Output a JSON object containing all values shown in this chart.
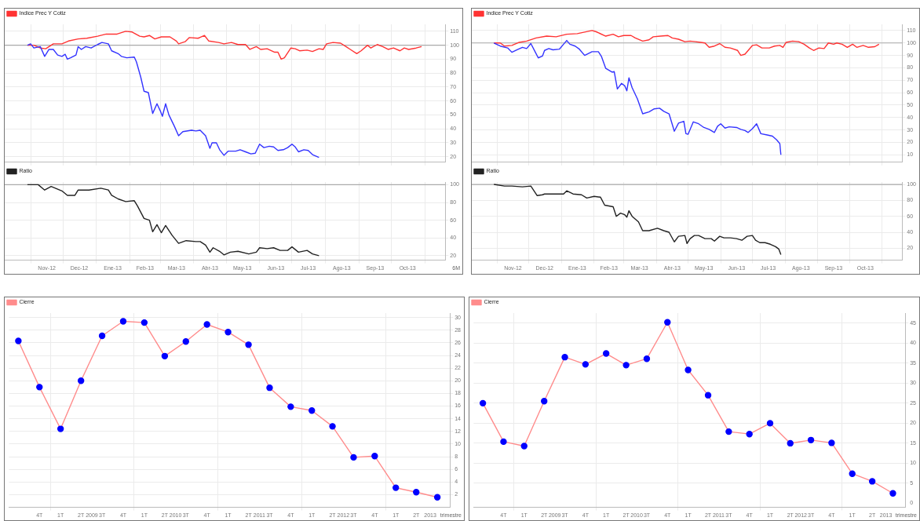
{
  "chart_data": [
    {
      "type": "line",
      "legend": "top left",
      "marker": "none",
      "grid": true,
      "tick_labels": "y",
      "xlim": [
        "2012-10-08",
        "2013-11-20"
      ],
      "ylim": [
        16,
        115
      ],
      "yticks": [
        20,
        30,
        40,
        50,
        60,
        70,
        80,
        90,
        100,
        110
      ],
      "xticks": [
        {
          "value": "2012-11-01",
          "label": null
        },
        {
          "value": "2012-12-01",
          "label": null
        },
        {
          "value": "2013-01-01",
          "label": null
        },
        {
          "value": "2013-02-01",
          "label": null
        },
        {
          "value": "2013-03-01",
          "label": null
        },
        {
          "value": "2013-04-01",
          "label": null
        },
        {
          "value": "2013-05-01",
          "label": null
        },
        {
          "value": "2013-06-01",
          "label": null
        },
        {
          "value": "2013-07-01",
          "label": null
        },
        {
          "value": "2013-08-01",
          "label": null
        },
        {
          "value": "2013-09-01",
          "label": null
        },
        {
          "value": "2013-10-01",
          "label": null
        },
        {
          "value": "2013-11-01",
          "label": null
        }
      ],
      "ref_lines": [
        {
          "axis": "y",
          "value": 100,
          "color": "#aaaaaa"
        }
      ],
      "series": [
        {
          "color": "#3333ff",
          "x": [
            "2012-10-29",
            "2012-11-01",
            "2012-11-04",
            "2012-11-10",
            "2012-11-14",
            "2012-11-18",
            "2012-11-22",
            "2012-11-26",
            "2012-11-30",
            "2012-12-03",
            "2012-12-05",
            "2012-12-08",
            "2012-12-13",
            "2012-12-15",
            "2012-12-18",
            "2012-12-22",
            "2012-12-27",
            "2013-01-02",
            "2013-01-06",
            "2013-01-12",
            "2013-01-15",
            "2013-01-21",
            "2013-01-24",
            "2013-01-29",
            "2013-02-05",
            "2013-02-07",
            "2013-02-11",
            "2013-02-14",
            "2013-02-18",
            "2013-02-22",
            "2013-02-26",
            "2013-03-01",
            "2013-03-03",
            "2013-03-06",
            "2013-03-09",
            "2013-03-14",
            "2013-03-18",
            "2013-03-22",
            "2013-03-30",
            "2013-04-03",
            "2013-04-07",
            "2013-04-12",
            "2013-04-16",
            "2013-04-18",
            "2013-04-22",
            "2013-04-25",
            "2013-04-29",
            "2013-05-03",
            "2013-05-10",
            "2013-05-14",
            "2013-05-19",
            "2013-05-24",
            "2013-05-28",
            "2013-06-01",
            "2013-06-05",
            "2013-06-10",
            "2013-06-14",
            "2013-06-18",
            "2013-06-23",
            "2013-06-27",
            "2013-07-01",
            "2013-07-04",
            "2013-07-07",
            "2013-07-12",
            "2013-07-16",
            "2013-07-20",
            "2013-07-26"
          ],
          "values": [
            100,
            101,
            98,
            99,
            92,
            97,
            97,
            93,
            92,
            93.5,
            90,
            91,
            93,
            99,
            97,
            99,
            98,
            100.5,
            102,
            101,
            96,
            94,
            92,
            91,
            91.5,
            88,
            77,
            67,
            66,
            51,
            58,
            53,
            49,
            58,
            50,
            42,
            35,
            38,
            39,
            38.5,
            39,
            35,
            26,
            30,
            30,
            25,
            21,
            24,
            24,
            25,
            23.5,
            22,
            22.5,
            29,
            26.5,
            27.5,
            27,
            24.5,
            25,
            26.5,
            29,
            27,
            23.5,
            25,
            24.5,
            21.5,
            19.5
          ]
        },
        {
          "name": "Indice Prec Y Cotiz",
          "color": "#ff3333",
          "x": [
            "2012-10-29",
            "2012-11-04",
            "2012-11-10",
            "2012-11-15",
            "2012-11-22",
            "2012-11-30",
            "2012-12-06",
            "2012-12-15",
            "2012-12-23",
            "2013-01-02",
            "2013-01-10",
            "2013-01-20",
            "2013-01-28",
            "2013-02-03",
            "2013-02-10",
            "2013-02-14",
            "2013-02-19",
            "2013-02-24",
            "2013-03-02",
            "2013-03-10",
            "2013-03-16",
            "2013-03-18",
            "2013-03-24",
            "2013-03-28",
            "2013-04-05",
            "2013-04-11",
            "2013-04-15",
            "2013-04-24",
            "2013-04-29",
            "2013-05-06",
            "2013-05-12",
            "2013-05-19",
            "2013-05-23",
            "2013-05-29",
            "2013-06-02",
            "2013-06-08",
            "2013-06-15",
            "2013-06-18",
            "2013-06-21",
            "2013-06-24",
            "2013-06-30",
            "2013-07-04",
            "2013-07-08",
            "2013-07-15",
            "2013-07-20",
            "2013-07-26",
            "2013-07-30",
            "2013-08-02",
            "2013-08-08",
            "2013-08-15",
            "2013-08-20",
            "2013-08-24",
            "2013-08-30",
            "2013-09-03",
            "2013-09-09",
            "2013-09-12",
            "2013-09-18",
            "2013-09-23",
            "2013-09-28",
            "2013-10-03",
            "2013-10-09",
            "2013-10-13",
            "2013-10-17",
            "2013-10-24",
            "2013-10-29"
          ],
          "values": [
            100,
            100,
            98,
            97.5,
            101,
            101,
            103,
            104.5,
            105,
            106.5,
            108,
            108,
            110,
            109.5,
            106.5,
            106,
            107,
            104.5,
            106,
            106,
            103,
            101,
            102.5,
            105.5,
            105,
            107,
            103,
            102,
            101,
            102,
            100.5,
            100.5,
            97,
            99,
            97,
            97.5,
            95,
            95,
            90,
            91,
            98,
            97.5,
            96,
            96.5,
            95.5,
            97.5,
            97,
            101,
            102,
            101.5,
            99,
            97,
            94,
            96,
            100,
            98,
            100.5,
            99,
            97,
            98,
            96,
            98,
            97,
            98,
            99
          ]
        }
      ]
    },
    {
      "type": "line",
      "legend": "top left",
      "marker": "none",
      "grid": true,
      "xlim": [
        "2012-10-08",
        "2013-11-20"
      ],
      "ylim": [
        15,
        103
      ],
      "yticks": [
        20,
        40,
        60,
        80,
        100
      ],
      "xticks": [
        {
          "value": "2012-11-01",
          "label": null
        },
        {
          "value": "2012-11-16",
          "label": "Nov-12"
        },
        {
          "value": "2012-12-01",
          "label": null
        },
        {
          "value": "2012-12-16",
          "label": "Dec-12"
        },
        {
          "value": "2013-01-01",
          "label": null
        },
        {
          "value": "2013-01-16",
          "label": "Ene-13"
        },
        {
          "value": "2013-02-01",
          "label": null
        },
        {
          "value": "2013-02-15",
          "label": "Feb-13"
        },
        {
          "value": "2013-03-01",
          "label": null
        },
        {
          "value": "2013-03-16",
          "label": "Mar-13"
        },
        {
          "value": "2013-04-01",
          "label": null
        },
        {
          "value": "2013-04-16",
          "label": "Abr-13"
        },
        {
          "value": "2013-05-01",
          "label": null
        },
        {
          "value": "2013-05-16",
          "label": "May-13"
        },
        {
          "value": "2013-06-01",
          "label": null
        },
        {
          "value": "2013-06-16",
          "label": "Jun-13"
        },
        {
          "value": "2013-07-01",
          "label": null
        },
        {
          "value": "2013-07-16",
          "label": "Jul-13"
        },
        {
          "value": "2013-08-01",
          "label": null
        },
        {
          "value": "2013-08-16",
          "label": "Ago-13"
        },
        {
          "value": "2013-09-01",
          "label": null
        },
        {
          "value": "2013-09-16",
          "label": "Sep-13"
        },
        {
          "value": "2013-10-01",
          "label": null
        },
        {
          "value": "2013-10-16",
          "label": "Oct-13"
        },
        {
          "value": "2013-11-01",
          "label": null
        }
      ],
      "ref_lines": [
        {
          "axis": "y",
          "value": 100,
          "color": "#aaaaaa"
        }
      ],
      "annotations": [
        "6M"
      ],
      "series": [
        {
          "name": "Ratio",
          "color": "#222222",
          "x": [
            "2012-10-29",
            "2012-11-08",
            "2012-11-14",
            "2012-11-20",
            "2012-11-30",
            "2012-12-05",
            "2012-12-12",
            "2012-12-15",
            "2012-12-25",
            "2013-01-05",
            "2013-01-12",
            "2013-01-15",
            "2013-01-21",
            "2013-01-28",
            "2013-02-05",
            "2013-02-08",
            "2013-02-14",
            "2013-02-19",
            "2013-02-22",
            "2013-02-26",
            "2013-03-02",
            "2013-03-06",
            "2013-03-12",
            "2013-03-18",
            "2013-03-25",
            "2013-04-03",
            "2013-04-07",
            "2013-04-12",
            "2013-04-16",
            "2013-04-19",
            "2013-04-25",
            "2013-04-29",
            "2013-05-05",
            "2013-05-12",
            "2013-05-22",
            "2013-05-29",
            "2013-06-01",
            "2013-06-08",
            "2013-06-14",
            "2013-06-20",
            "2013-06-27",
            "2013-07-01",
            "2013-07-07",
            "2013-07-15",
            "2013-07-20",
            "2013-07-26"
          ],
          "values": [
            100,
            100,
            94,
            98,
            93,
            88,
            88,
            94,
            94,
            96,
            94,
            88,
            84,
            81,
            82,
            76,
            62,
            60,
            47,
            55,
            46,
            54,
            43,
            34,
            37,
            36,
            36,
            32,
            24,
            29,
            25,
            21,
            24,
            25,
            22,
            24,
            29,
            28,
            29,
            26,
            26,
            30,
            24,
            26,
            22,
            20
          ]
        }
      ]
    },
    {
      "type": "line",
      "legend": "top left",
      "marker": "none",
      "grid": true,
      "tick_labels": "y",
      "xlim": [
        "2012-10-08",
        "2013-11-20"
      ],
      "ylim": [
        4,
        115
      ],
      "yticks": [
        10,
        20,
        30,
        40,
        50,
        60,
        70,
        80,
        90,
        100,
        110
      ],
      "xticks": [
        {
          "value": "2012-11-01",
          "label": null
        },
        {
          "value": "2012-12-01",
          "label": null
        },
        {
          "value": "2013-01-01",
          "label": null
        },
        {
          "value": "2013-02-01",
          "label": null
        },
        {
          "value": "2013-03-01",
          "label": null
        },
        {
          "value": "2013-04-01",
          "label": null
        },
        {
          "value": "2013-05-01",
          "label": null
        },
        {
          "value": "2013-06-01",
          "label": null
        },
        {
          "value": "2013-07-01",
          "label": null
        },
        {
          "value": "2013-08-01",
          "label": null
        },
        {
          "value": "2013-09-01",
          "label": null
        },
        {
          "value": "2013-10-01",
          "label": null
        },
        {
          "value": "2013-11-01",
          "label": null
        }
      ],
      "ref_lines": [
        {
          "axis": "y",
          "value": 100,
          "color": "#aaaaaa"
        }
      ],
      "series": [
        {
          "color": "#3333ff",
          "x": [
            "2012-10-29",
            "2012-11-04",
            "2012-11-11",
            "2012-11-15",
            "2012-11-20",
            "2012-11-25",
            "2012-11-29",
            "2012-12-03",
            "2012-12-07",
            "2012-12-10",
            "2012-12-14",
            "2012-12-16",
            "2012-12-20",
            "2012-12-24",
            "2012-12-30",
            "2013-01-03",
            "2013-01-06",
            "2013-01-09",
            "2013-01-14",
            "2013-01-18",
            "2013-01-23",
            "2013-01-30",
            "2013-02-05",
            "2013-02-08",
            "2013-02-12",
            "2013-02-18",
            "2013-02-20",
            "2013-02-23",
            "2013-02-27",
            "2013-03-02",
            "2013-03-04",
            "2013-03-06",
            "2013-03-09",
            "2013-03-14",
            "2013-03-19",
            "2013-03-25",
            "2013-03-30",
            "2013-04-04",
            "2013-04-08",
            "2013-04-13",
            "2013-04-18",
            "2013-04-22",
            "2013-04-27",
            "2013-04-29",
            "2013-05-01",
            "2013-05-06",
            "2013-05-11",
            "2013-05-16",
            "2013-05-21",
            "2013-05-26",
            "2013-05-29",
            "2013-06-01",
            "2013-06-05",
            "2013-06-09",
            "2013-06-16",
            "2013-06-20",
            "2013-06-24",
            "2013-06-27",
            "2013-07-01",
            "2013-07-05",
            "2013-07-09",
            "2013-07-15",
            "2013-07-20",
            "2013-07-24",
            "2013-07-27",
            "2013-07-28"
          ],
          "values": [
            100,
            97.5,
            96,
            92.5,
            94.5,
            96.5,
            95.5,
            99.5,
            93,
            88,
            89.5,
            94,
            95.5,
            94.5,
            95,
            99,
            102,
            99,
            97.5,
            95,
            90,
            93,
            93,
            89,
            79.5,
            76.5,
            77,
            63,
            67.5,
            65.5,
            61.5,
            72,
            64,
            55,
            43,
            44.5,
            47,
            47.5,
            45,
            43,
            29,
            35.5,
            37,
            27,
            26.5,
            36.5,
            35,
            32,
            30.5,
            28,
            33,
            35,
            31.5,
            32.5,
            32,
            30.5,
            29.5,
            28,
            31,
            35,
            27,
            26,
            25,
            22,
            19,
            10
          ]
        },
        {
          "name": "Indice Prec Y Cotiz",
          "color": "#ff3333",
          "x": [
            "2012-10-29",
            "2012-11-04",
            "2012-11-08",
            "2012-11-15",
            "2012-11-22",
            "2012-11-29",
            "2012-12-08",
            "2012-12-18",
            "2012-12-27",
            "2013-01-06",
            "2013-01-16",
            "2013-01-30",
            "2013-02-03",
            "2013-02-12",
            "2013-02-19",
            "2013-02-24",
            "2013-03-01",
            "2013-03-08",
            "2013-03-12",
            "2013-03-19",
            "2013-03-25",
            "2013-03-29",
            "2013-04-05",
            "2013-04-12",
            "2013-04-16",
            "2013-04-22",
            "2013-04-28",
            "2013-05-03",
            "2013-05-08",
            "2013-05-13",
            "2013-05-17",
            "2013-05-21",
            "2013-05-26",
            "2013-05-31",
            "2013-06-05",
            "2013-06-10",
            "2013-06-17",
            "2013-06-20",
            "2013-06-24",
            "2013-07-01",
            "2013-07-05",
            "2013-07-10",
            "2013-07-17",
            "2013-07-22",
            "2013-07-27",
            "2013-07-30",
            "2013-08-02",
            "2013-08-08",
            "2013-08-14",
            "2013-08-19",
            "2013-08-24",
            "2013-08-28",
            "2013-09-02",
            "2013-09-07",
            "2013-09-11",
            "2013-09-16",
            "2013-09-19",
            "2013-09-24",
            "2013-09-29",
            "2013-10-04",
            "2013-10-08",
            "2013-10-14",
            "2013-10-19",
            "2013-10-25",
            "2013-10-29"
          ],
          "values": [
            100,
            100,
            97.5,
            98,
            100.5,
            101.5,
            104,
            105.5,
            105,
            107,
            107.5,
            110,
            109,
            105.5,
            107,
            105,
            106,
            106,
            104,
            101.5,
            102.5,
            105,
            105.5,
            106,
            104,
            103,
            101,
            101.5,
            101,
            100.5,
            100,
            96.5,
            97.5,
            99.5,
            96.5,
            96,
            94,
            90,
            91,
            98,
            98.5,
            96,
            96,
            97.5,
            98,
            96.5,
            100.5,
            101.5,
            101,
            99,
            96,
            94,
            96,
            95.5,
            100,
            99,
            100,
            99,
            96.5,
            99,
            96.5,
            98,
            96.5,
            97,
            99
          ]
        }
      ]
    },
    {
      "type": "line",
      "legend": "top left",
      "marker": "none",
      "grid": true,
      "xlim": [
        "2012-10-08",
        "2013-11-20"
      ],
      "ylim": [
        5,
        103
      ],
      "yticks": [
        20,
        40,
        60,
        80,
        100
      ],
      "xticks": [
        {
          "value": "2012-11-01",
          "label": null
        },
        {
          "value": "2012-11-16",
          "label": "Nov-12"
        },
        {
          "value": "2012-12-01",
          "label": null
        },
        {
          "value": "2012-12-16",
          "label": "Dec-12"
        },
        {
          "value": "2013-01-01",
          "label": null
        },
        {
          "value": "2013-01-16",
          "label": "Ene-13"
        },
        {
          "value": "2013-02-01",
          "label": null
        },
        {
          "value": "2013-02-15",
          "label": "Feb-13"
        },
        {
          "value": "2013-03-01",
          "label": null
        },
        {
          "value": "2013-03-16",
          "label": "Mar-13"
        },
        {
          "value": "2013-04-01",
          "label": null
        },
        {
          "value": "2013-04-16",
          "label": "Abr-13"
        },
        {
          "value": "2013-05-01",
          "label": null
        },
        {
          "value": "2013-05-16",
          "label": "May-13"
        },
        {
          "value": "2013-06-01",
          "label": null
        },
        {
          "value": "2013-06-16",
          "label": "Jun-13"
        },
        {
          "value": "2013-07-01",
          "label": null
        },
        {
          "value": "2013-07-16",
          "label": "Jul-13"
        },
        {
          "value": "2013-08-01",
          "label": null
        },
        {
          "value": "2013-08-16",
          "label": "Ago-13"
        },
        {
          "value": "2013-09-01",
          "label": null
        },
        {
          "value": "2013-09-16",
          "label": "Sep-13"
        },
        {
          "value": "2013-10-01",
          "label": null
        },
        {
          "value": "2013-10-16",
          "label": "Oct-13"
        },
        {
          "value": "2013-11-01",
          "label": null
        }
      ],
      "ref_lines": [
        {
          "axis": "y",
          "value": 100,
          "color": "#aaaaaa"
        }
      ],
      "series": [
        {
          "name": "Ratio",
          "color": "#222222",
          "x": [
            "2012-10-29",
            "2012-11-08",
            "2012-11-15",
            "2012-11-25",
            "2012-12-03",
            "2012-12-09",
            "2012-12-14",
            "2012-12-16",
            "2012-12-25",
            "2013-01-03",
            "2013-01-06",
            "2013-01-12",
            "2013-01-20",
            "2013-01-25",
            "2013-02-01",
            "2013-02-07",
            "2013-02-11",
            "2013-02-15",
            "2013-02-19",
            "2013-02-22",
            "2013-02-26",
            "2013-03-02",
            "2013-03-04",
            "2013-03-06",
            "2013-03-09",
            "2013-03-15",
            "2013-03-19",
            "2013-03-25",
            "2013-04-02",
            "2013-04-08",
            "2013-04-13",
            "2013-04-18",
            "2013-04-22",
            "2013-04-28",
            "2013-04-30",
            "2013-05-03",
            "2013-05-07",
            "2013-05-11",
            "2013-05-17",
            "2013-05-23",
            "2013-05-26",
            "2013-05-31",
            "2013-06-04",
            "2013-06-10",
            "2013-06-16",
            "2013-06-21",
            "2013-06-26",
            "2013-07-01",
            "2013-07-04",
            "2013-07-08",
            "2013-07-13",
            "2013-07-18",
            "2013-07-23",
            "2013-07-26",
            "2013-07-28"
          ],
          "values": [
            100,
            98,
            98,
            97,
            98,
            86,
            87,
            88,
            88,
            88,
            92,
            88,
            87,
            83,
            85,
            84,
            74,
            73,
            72,
            60,
            64,
            62,
            59,
            67,
            60,
            53,
            42,
            42,
            45,
            42,
            40,
            28,
            35,
            36,
            26,
            32,
            36,
            36,
            32,
            32,
            29,
            35,
            33,
            33,
            32,
            30,
            35,
            36,
            30,
            27,
            27,
            25,
            22,
            19,
            12
          ]
        }
      ]
    },
    {
      "type": "line",
      "legend": "top left",
      "marker": "circle",
      "grid": true,
      "xlim": [
        "2008-07-05",
        "2013-10-09"
      ],
      "ylim": [
        0,
        30.7
      ],
      "yticks": [
        2,
        4,
        6,
        8,
        10,
        12,
        14,
        16,
        18,
        20,
        22,
        24,
        26,
        28,
        30
      ],
      "xticks": [
        {
          "value": "2008-11-15",
          "label": "4T"
        },
        {
          "value": "2009-01-01",
          "label": null
        },
        {
          "value": "2009-02-15",
          "label": "1T"
        },
        {
          "value": "2009-05-15",
          "label": "2T"
        },
        {
          "value": "2009-07-01",
          "label": "2009"
        },
        {
          "value": "2009-08-15",
          "label": "3T"
        },
        {
          "value": "2009-11-15",
          "label": "4T"
        },
        {
          "value": "2010-01-01",
          "label": null
        },
        {
          "value": "2010-02-15",
          "label": "1T"
        },
        {
          "value": "2010-05-15",
          "label": "2T"
        },
        {
          "value": "2010-07-01",
          "label": "2010"
        },
        {
          "value": "2010-08-15",
          "label": "3T"
        },
        {
          "value": "2010-11-15",
          "label": "4T"
        },
        {
          "value": "2011-01-01",
          "label": null
        },
        {
          "value": "2011-02-15",
          "label": "1T"
        },
        {
          "value": "2011-05-15",
          "label": "2T"
        },
        {
          "value": "2011-07-01",
          "label": "2011"
        },
        {
          "value": "2011-08-15",
          "label": "3T"
        },
        {
          "value": "2011-11-15",
          "label": "4T"
        },
        {
          "value": "2012-01-01",
          "label": null
        },
        {
          "value": "2012-02-15",
          "label": "1T"
        },
        {
          "value": "2012-05-15",
          "label": "2T"
        },
        {
          "value": "2012-07-01",
          "label": "2012"
        },
        {
          "value": "2012-08-15",
          "label": "3T"
        },
        {
          "value": "2012-11-15",
          "label": "4T"
        },
        {
          "value": "2013-01-01",
          "label": null
        },
        {
          "value": "2013-02-15",
          "label": "1T"
        },
        {
          "value": "2013-05-15",
          "label": "2T"
        },
        {
          "value": "2013-07-15",
          "label": "2013"
        }
      ],
      "annotations": [
        "trimestre"
      ],
      "series": [
        {
          "name": "Cierre",
          "color": "#ff8c8c",
          "colors": [
            "#0000ff",
            "#0000ff",
            "#0000ff",
            "#0000ff",
            "#0000ff",
            "#0000ff",
            "#0000ff",
            "#0000ff",
            "#0000ff",
            "#0000ff",
            "#0000ff",
            "#0000ff",
            "#0000ff",
            "#0000ff",
            "#0000ff",
            "#0000ff",
            "#0000ff",
            "#0000ff",
            "#0000ff",
            "#0000ff",
            "#0000ff"
          ],
          "x": [
            "2008-08-15",
            "2008-11-15",
            "2009-02-15",
            "2009-05-15",
            "2009-08-15",
            "2009-11-15",
            "2010-02-15",
            "2010-05-15",
            "2010-08-15",
            "2010-11-15",
            "2011-02-15",
            "2011-05-15",
            "2011-08-15",
            "2011-11-15",
            "2012-02-15",
            "2012-05-15",
            "2012-08-15",
            "2012-11-15",
            "2013-02-15",
            "2013-05-15",
            "2013-08-15"
          ],
          "values": [
            26.3,
            19.0,
            12.4,
            20.0,
            27.1,
            29.4,
            29.2,
            23.9,
            26.2,
            28.9,
            27.7,
            25.7,
            18.9,
            15.9,
            15.3,
            12.8,
            7.9,
            8.1,
            3.1,
            2.4,
            1.6
          ]
        }
      ]
    },
    {
      "type": "line",
      "legend": "top left",
      "marker": "circle",
      "grid": true,
      "xlim": [
        "2008-07-05",
        "2013-10-09"
      ],
      "ylim": [
        -1,
        47.5
      ],
      "yticks": [
        0,
        5,
        10,
        15,
        20,
        25,
        30,
        35,
        40,
        45
      ],
      "xticks": [
        {
          "value": "2008-11-15",
          "label": "4T"
        },
        {
          "value": "2009-01-01",
          "label": null
        },
        {
          "value": "2009-02-15",
          "label": "1T"
        },
        {
          "value": "2009-05-15",
          "label": "2T"
        },
        {
          "value": "2009-07-01",
          "label": "2009"
        },
        {
          "value": "2009-08-15",
          "label": "3T"
        },
        {
          "value": "2009-11-15",
          "label": "4T"
        },
        {
          "value": "2010-01-01",
          "label": null
        },
        {
          "value": "2010-02-15",
          "label": "1T"
        },
        {
          "value": "2010-05-15",
          "label": "2T"
        },
        {
          "value": "2010-07-01",
          "label": "2010"
        },
        {
          "value": "2010-08-15",
          "label": "3T"
        },
        {
          "value": "2010-11-15",
          "label": "4T"
        },
        {
          "value": "2011-01-01",
          "label": null
        },
        {
          "value": "2011-02-15",
          "label": "1T"
        },
        {
          "value": "2011-05-15",
          "label": "2T"
        },
        {
          "value": "2011-07-01",
          "label": "2011"
        },
        {
          "value": "2011-08-15",
          "label": "3T"
        },
        {
          "value": "2011-11-15",
          "label": "4T"
        },
        {
          "value": "2012-01-01",
          "label": null
        },
        {
          "value": "2012-02-15",
          "label": "1T"
        },
        {
          "value": "2012-05-15",
          "label": "2T"
        },
        {
          "value": "2012-07-01",
          "label": "2012"
        },
        {
          "value": "2012-08-15",
          "label": "3T"
        },
        {
          "value": "2012-11-15",
          "label": "4T"
        },
        {
          "value": "2013-01-01",
          "label": null
        },
        {
          "value": "2013-02-15",
          "label": "1T"
        },
        {
          "value": "2013-05-15",
          "label": "2T"
        },
        {
          "value": "2013-07-15",
          "label": "2013"
        }
      ],
      "annotations": [
        "trimestre"
      ],
      "series": [
        {
          "name": "Cierre",
          "color": "#ff8c8c",
          "colors": [
            "#0000ff",
            "#0000ff",
            "#0000ff",
            "#0000ff",
            "#0000ff",
            "#0000ff",
            "#0000ff",
            "#0000ff",
            "#0000ff",
            "#0000ff",
            "#0000ff",
            "#0000ff",
            "#0000ff",
            "#0000ff",
            "#0000ff",
            "#0000ff",
            "#0000ff",
            "#0000ff",
            "#0000ff",
            "#0000ff",
            "#0000ff"
          ],
          "x": [
            "2008-08-15",
            "2008-11-15",
            "2009-02-15",
            "2009-05-15",
            "2009-08-15",
            "2009-11-15",
            "2010-02-15",
            "2010-05-15",
            "2010-08-15",
            "2010-11-15",
            "2011-02-15",
            "2011-05-15",
            "2011-08-15",
            "2011-11-15",
            "2012-02-15",
            "2012-05-15",
            "2012-08-15",
            "2012-11-15",
            "2013-02-15",
            "2013-05-15",
            "2013-08-15"
          ],
          "values": [
            25.0,
            15.4,
            14.3,
            25.5,
            36.5,
            34.7,
            37.4,
            34.5,
            36.1,
            45.2,
            33.3,
            27.0,
            17.9,
            17.3,
            20.0,
            15.0,
            15.8,
            15.1,
            7.4,
            5.5,
            2.5
          ]
        }
      ]
    }
  ]
}
